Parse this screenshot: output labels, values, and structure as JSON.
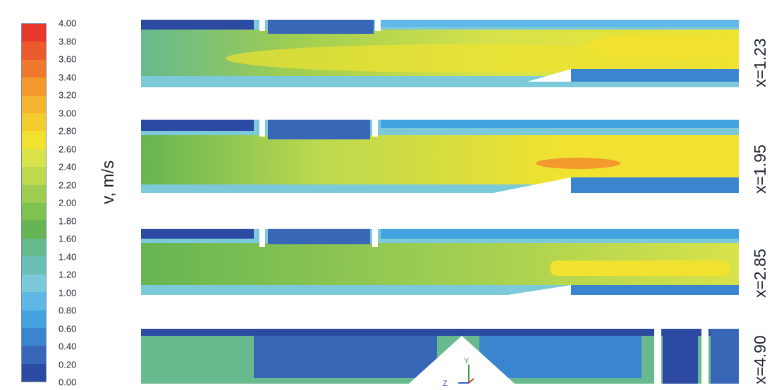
{
  "colorbar": {
    "unit_label": "v, m/s",
    "ticks": [
      "4.00",
      "3.80",
      "3.60",
      "3.40",
      "3.20",
      "3.00",
      "2.80",
      "2.60",
      "2.40",
      "2.20",
      "2.00",
      "1.80",
      "1.60",
      "1.40",
      "1.20",
      "1.00",
      "0.80",
      "0.60",
      "0.40",
      "0.20",
      "0.00"
    ],
    "colors": [
      "#e8372b",
      "#ea5a2c",
      "#ef7a2d",
      "#f3992d",
      "#f6b52f",
      "#f3cd2e",
      "#f0e22f",
      "#d8e34a",
      "#bcd950",
      "#9ecd52",
      "#7fc24f",
      "#66b552",
      "#67b98e",
      "#6cbfb7",
      "#7cc9d9",
      "#5fb8e6",
      "#42a3e0",
      "#3b85cf",
      "#3867b8",
      "#2c4aa2"
    ]
  },
  "sections": [
    {
      "label": "x=1.23"
    },
    {
      "label": "x=1.95"
    },
    {
      "label": "x=2.85"
    },
    {
      "label": "x=4.90"
    }
  ],
  "axis_triad": {
    "y": "Y",
    "z": "Z"
  }
}
